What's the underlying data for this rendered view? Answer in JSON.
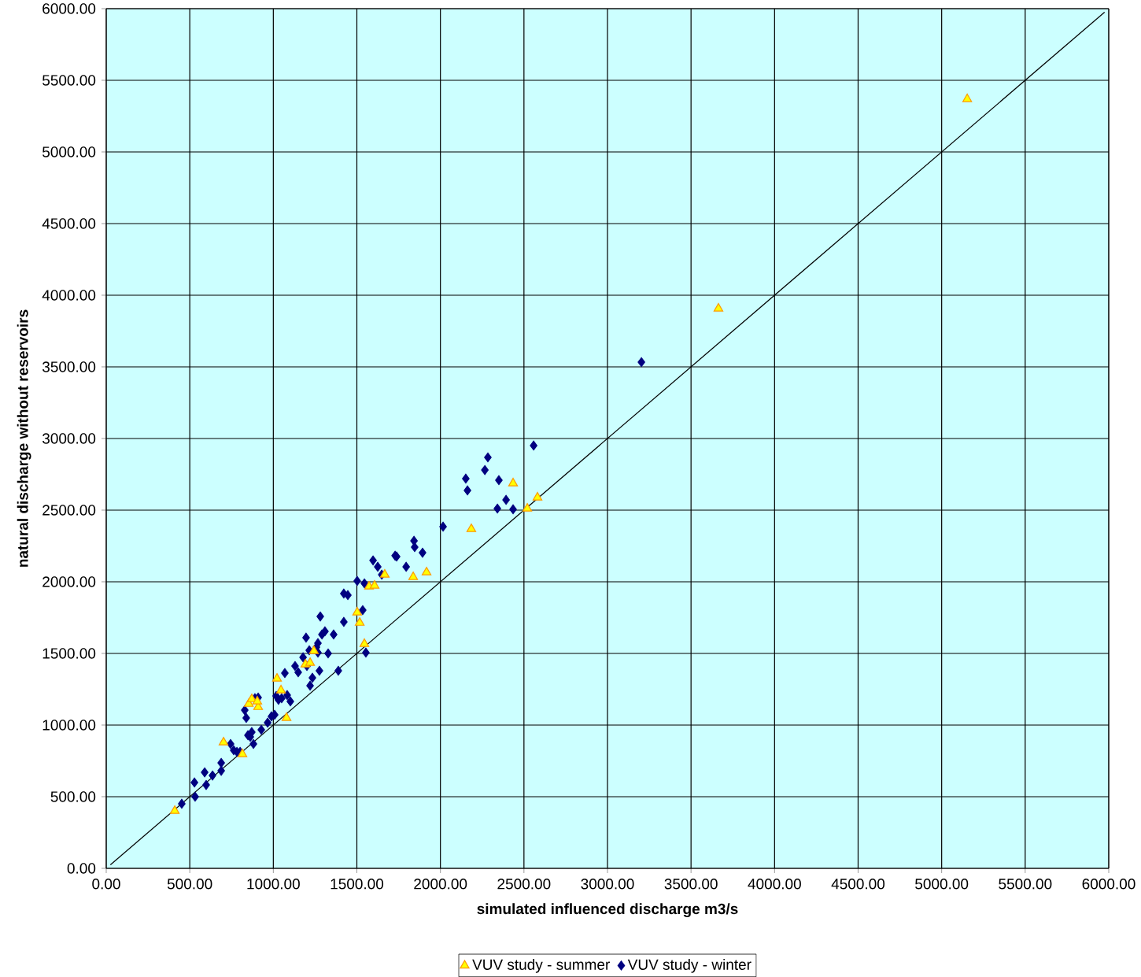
{
  "chart_data": {
    "type": "scatter",
    "xlabel": "simulated influenced discharge m3/s",
    "ylabel": "natural discharge without reservoirs",
    "xlim": [
      0,
      6000
    ],
    "ylim": [
      0,
      6000
    ],
    "xticks": [
      {
        "value": 0,
        "label": "0.00"
      },
      {
        "value": 500,
        "label": "500.00"
      },
      {
        "value": 1000,
        "label": "1000.00"
      },
      {
        "value": 1500,
        "label": "1500.00"
      },
      {
        "value": 2000,
        "label": "2000.00"
      },
      {
        "value": 2500,
        "label": "2500.00"
      },
      {
        "value": 3000,
        "label": "3000.00"
      },
      {
        "value": 3500,
        "label": "3500.00"
      },
      {
        "value": 4000,
        "label": "4000.00"
      },
      {
        "value": 4500,
        "label": "4500.00"
      },
      {
        "value": 5000,
        "label": "5000.00"
      },
      {
        "value": 5500,
        "label": "5500.00"
      },
      {
        "value": 6000,
        "label": "6000.00"
      }
    ],
    "yticks": [
      {
        "value": 0,
        "label": "0.00"
      },
      {
        "value": 500,
        "label": "500.00"
      },
      {
        "value": 1000,
        "label": "1000.00"
      },
      {
        "value": 1500,
        "label": "1500.00"
      },
      {
        "value": 2000,
        "label": "2000.00"
      },
      {
        "value": 2500,
        "label": "2500.00"
      },
      {
        "value": 3000,
        "label": "3000.00"
      },
      {
        "value": 3500,
        "label": "3500.00"
      },
      {
        "value": 4000,
        "label": "4000.00"
      },
      {
        "value": 4500,
        "label": "4500.00"
      },
      {
        "value": 5000,
        "label": "5000.00"
      },
      {
        "value": 5500,
        "label": "5500.00"
      },
      {
        "value": 6000,
        "label": "6000.00"
      }
    ],
    "grid": true,
    "legend": "bottom",
    "series": [
      {
        "name": "VUV study - summer",
        "marker": "triangle",
        "color": "#ffff00",
        "x": [
          410,
          702,
          815,
          853,
          871,
          909,
          904,
          1022,
          1046,
          1079,
          1192,
          1220,
          1243,
          1502,
          1517,
          1545,
          1573,
          1606,
          1667,
          1837,
          1917,
          2185,
          2435,
          2520,
          2581,
          3664,
          5153
        ],
        "values": [
          401,
          879,
          797,
          1148,
          1181,
          1126,
          1165,
          1324,
          1242,
          1050,
          1423,
          1434,
          1517,
          1786,
          1714,
          1566,
          1967,
          1973,
          2050,
          2033,
          2066,
          2368,
          2687,
          2511,
          2588,
          3907,
          5369
        ]
      },
      {
        "name": "VUV study - winter",
        "marker": "diamond",
        "color": "#000080",
        "x": [
          452,
          528,
          532,
          598,
          589,
          636,
          688,
          688,
          744,
          763,
          782,
          801,
          829,
          838,
          848,
          862,
          871,
          881,
          890,
          909,
          928,
          966,
          989,
          1008,
          1017,
          1031,
          1050,
          1069,
          1083,
          1102,
          1130,
          1149,
          1178,
          1196,
          1201,
          1215,
          1220,
          1234,
          1258,
          1267,
          1267,
          1276,
          1281,
          1291,
          1309,
          1328,
          1361,
          1389,
          1422,
          1422,
          1446,
          1502,
          1535,
          1545,
          1554,
          1597,
          1625,
          1649,
          1729,
          1738,
          1795,
          1842,
          1846,
          1893,
          2016,
          2152,
          2162,
          2266,
          2284,
          2350,
          2393,
          2341,
          2435,
          2558,
          3203
        ],
        "values": [
          451,
          599,
          500,
          582,
          670,
          648,
          681,
          736,
          868,
          824,
          813,
          813,
          1104,
          1050,
          929,
          918,
          951,
          868,
          1187,
          1192,
          967,
          1017,
          1061,
          1072,
          1203,
          1176,
          1187,
          1363,
          1209,
          1165,
          1412,
          1368,
          1473,
          1610,
          1412,
          1522,
          1275,
          1330,
          1544,
          1506,
          1572,
          1379,
          1758,
          1632,
          1654,
          1500,
          1632,
          1379,
          1720,
          1918,
          1907,
          2006,
          1802,
          1989,
          1506,
          2149,
          2105,
          2050,
          2182,
          2176,
          2105,
          2286,
          2242,
          2203,
          2385,
          2720,
          2638,
          2780,
          2868,
          2709,
          2572,
          2511,
          2506,
          2951,
          3533
        ]
      },
      {
        "type": "line",
        "marker": "none",
        "color": "#000000",
        "x": [
          25,
          5975
        ],
        "values": [
          25,
          5975
        ]
      }
    ]
  }
}
